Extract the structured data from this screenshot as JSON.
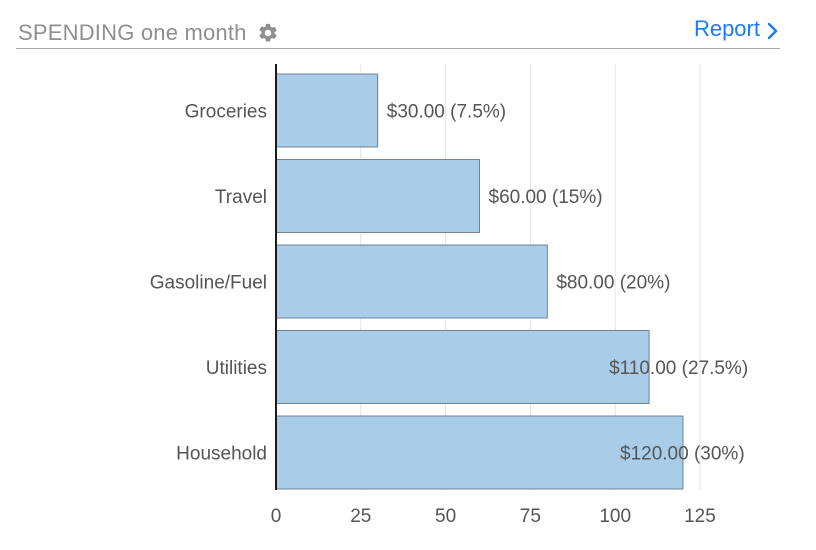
{
  "header": {
    "title": "SPENDING one month",
    "settings_icon": "gear-icon",
    "report_label": "Report",
    "report_icon": "chevron-right-icon",
    "accent_color": "#1a7cf5"
  },
  "chart_data": {
    "type": "bar",
    "orientation": "horizontal",
    "title": "",
    "xlabel": "",
    "ylabel": "",
    "categories": [
      "Groceries",
      "Travel",
      "Gasoline/Fuel",
      "Utilities",
      "Household"
    ],
    "values": [
      30,
      60,
      80,
      110,
      120
    ],
    "data_labels": [
      "$30.00 (7.5%)",
      "$60.00 (15%)",
      "$80.00 (20%)",
      "$110.00 (27.5%)",
      "$120.00 (30%)"
    ],
    "xticks": [
      0,
      25,
      50,
      75,
      100,
      125
    ],
    "xlim": [
      0,
      129
    ],
    "grid": true,
    "bar_color": "#a9cde8",
    "bar_edge_color": "#5a6a78"
  }
}
